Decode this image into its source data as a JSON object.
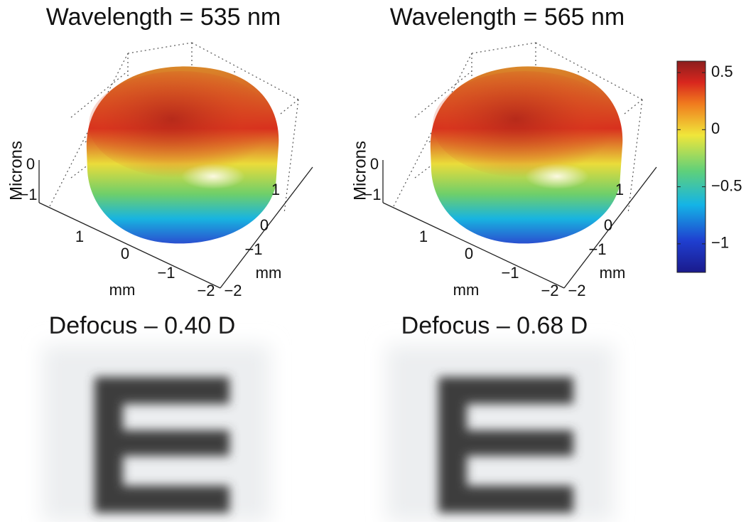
{
  "panels": [
    {
      "title": "Wavelength = 535 nm",
      "z_label": "Microns",
      "z_ticks": [
        "0",
        "−1"
      ],
      "x_label": "mm",
      "x_ticks": [
        "1",
        "0",
        "−1",
        "−2"
      ],
      "y_label": "mm",
      "y_ticks": [
        "−2",
        "−1",
        "0",
        "1"
      ],
      "caption": "Defocus – 0.40 D"
    },
    {
      "title": "Wavelength = 565 nm",
      "z_label": "Microns",
      "z_ticks": [
        "0",
        "−1"
      ],
      "x_label": "mm",
      "x_ticks": [
        "1",
        "0",
        "−1",
        "−2"
      ],
      "y_label": "mm",
      "y_ticks": [
        "−2",
        "−1",
        "0",
        "1"
      ],
      "caption": "Defocus – 0.68 D"
    }
  ],
  "colorbar": {
    "clim": [
      -1.25,
      0.6
    ],
    "ticks": [
      0.5,
      0,
      {
        "value": -0.5,
        "label": "−0.5"
      },
      {
        "value": -1,
        "label": "−1"
      }
    ]
  }
}
